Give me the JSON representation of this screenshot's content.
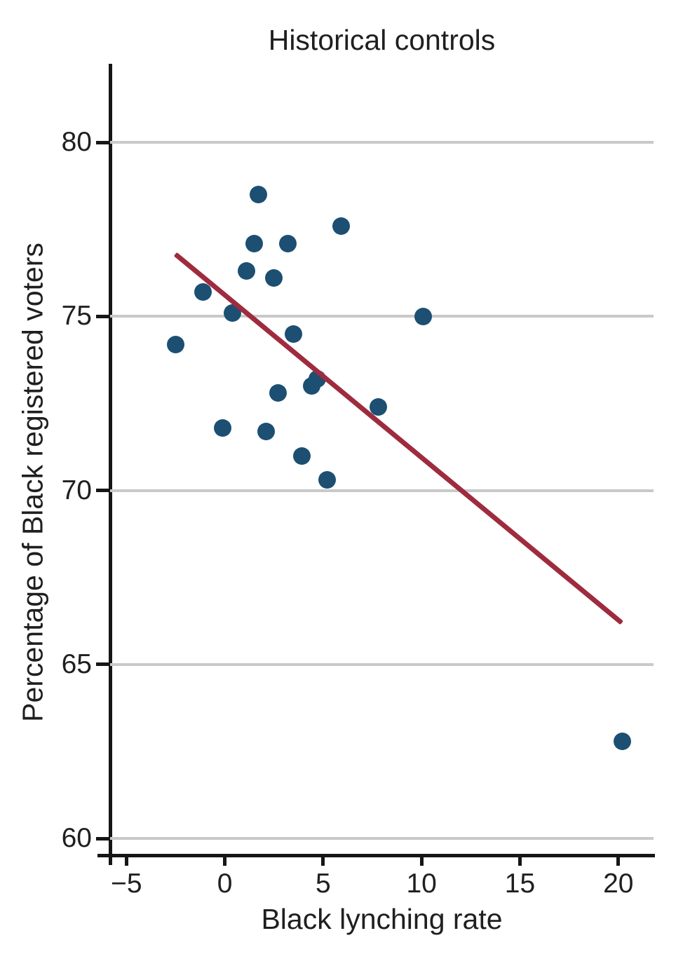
{
  "chart_data": {
    "type": "scatter",
    "title": "Historical controls",
    "xlabel": "Black lynching rate",
    "ylabel": "Percentage of Black registered voters",
    "xlim": [
      -5.83,
      21.79
    ],
    "ylim": [
      59.56,
      82.26
    ],
    "x_ticks": [
      -5,
      0,
      5,
      10,
      15,
      20
    ],
    "x_tick_labels": [
      "−5",
      "0",
      "5",
      "10",
      "15",
      "20"
    ],
    "y_ticks": [
      80,
      75,
      70,
      65,
      60
    ],
    "y_tick_labels": [
      "80",
      "75",
      "70",
      "65",
      "60"
    ],
    "grid": "horizontal-only",
    "legend": "none",
    "points": [
      [
        1.7,
        78.5
      ],
      [
        5.9,
        77.6
      ],
      [
        1.5,
        77.1
      ],
      [
        3.2,
        77.1
      ],
      [
        1.1,
        76.3
      ],
      [
        2.5,
        76.1
      ],
      [
        -1.1,
        75.7
      ],
      [
        0.4,
        75.1
      ],
      [
        10.1,
        75.0
      ],
      [
        3.5,
        74.5
      ],
      [
        -2.5,
        74.2
      ],
      [
        4.7,
        73.2
      ],
      [
        4.4,
        73.0
      ],
      [
        2.7,
        72.8
      ],
      [
        7.8,
        72.4
      ],
      [
        -0.1,
        71.8
      ],
      [
        2.1,
        71.7
      ],
      [
        3.9,
        71.0
      ],
      [
        5.2,
        70.3
      ],
      [
        20.2,
        62.8
      ]
    ],
    "fit_line": {
      "x1": -2.5,
      "y1": 76.8,
      "x2": 20.2,
      "y2": 66.2
    },
    "colors": {
      "point": "#1c4f72",
      "fit_line": "#9e2b3e",
      "grid": "#c9c9c9",
      "axis": "#161616",
      "text": "#1f1f1f"
    }
  }
}
